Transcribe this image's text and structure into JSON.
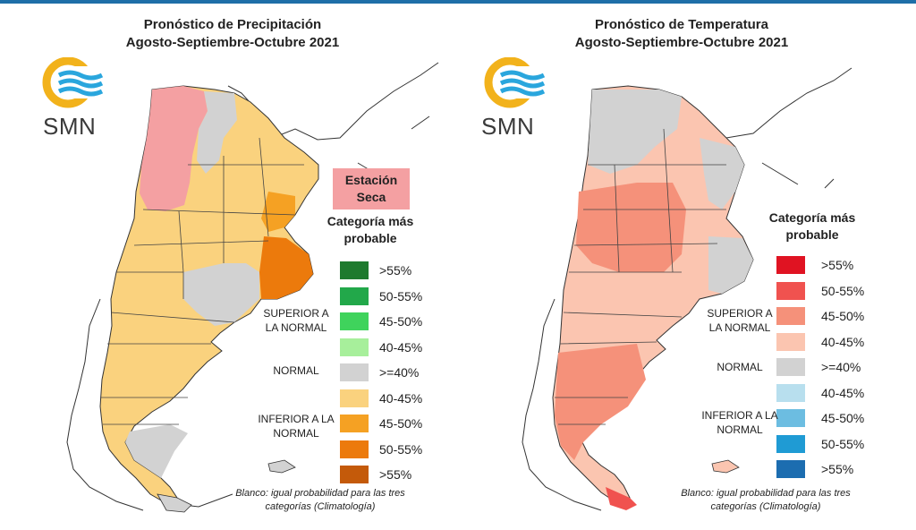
{
  "left": {
    "title_line1": "Pronóstico de Precipitación",
    "title_line2": "Agosto-Septiembre-Octubre 2021",
    "logo_text": "SMN",
    "dry_season": "Estación Seca",
    "legend_title": "Categoría más probable",
    "group_superior": "SUPERIOR A LA NORMAL",
    "group_normal": "NORMAL",
    "group_inferior": "INFERIOR A LA NORMAL",
    "legend": [
      {
        "label": ">55%",
        "color": "#1e7a2e"
      },
      {
        "label": "50-55%",
        "color": "#22a84a"
      },
      {
        "label": "45-50%",
        "color": "#3fd35c"
      },
      {
        "label": "40-45%",
        "color": "#a7ef9b"
      },
      {
        "label": ">=40%",
        "color": "#d2d2d2"
      },
      {
        "label": "40-45%",
        "color": "#fad27e"
      },
      {
        "label": "45-50%",
        "color": "#f5a123"
      },
      {
        "label": "50-55%",
        "color": "#ec7a0c"
      },
      {
        "label": ">55%",
        "color": "#c45a0a"
      }
    ],
    "footnote": "Blanco: igual probabilidad para las tres categorías (Climatología)"
  },
  "right": {
    "title_line1": "Pronóstico de Temperatura",
    "title_line2": "Agosto-Septiembre-Octubre 2021",
    "logo_text": "SMN",
    "legend_title": "Categoría más probable",
    "group_superior": "SUPERIOR A LA NORMAL",
    "group_normal": "NORMAL",
    "group_inferior": "INFERIOR A LA NORMAL",
    "legend": [
      {
        "label": ">55%",
        "color": "#e01322"
      },
      {
        "label": "50-55%",
        "color": "#f0524f"
      },
      {
        "label": "45-50%",
        "color": "#f5917a"
      },
      {
        "label": "40-45%",
        "color": "#fbc5b0"
      },
      {
        "label": ">=40%",
        "color": "#d2d2d2"
      },
      {
        "label": "40-45%",
        "color": "#b8dfee"
      },
      {
        "label": "45-50%",
        "color": "#6cbde1"
      },
      {
        "label": "50-55%",
        "color": "#1f9bd4"
      },
      {
        "label": ">55%",
        "color": "#1c6db0"
      }
    ],
    "footnote": "Blanco: igual probabilidad para las tres categorías (Climatología)"
  },
  "colors": {
    "logo_yellow": "#f2b21b",
    "logo_blue": "#2aa6dd"
  }
}
